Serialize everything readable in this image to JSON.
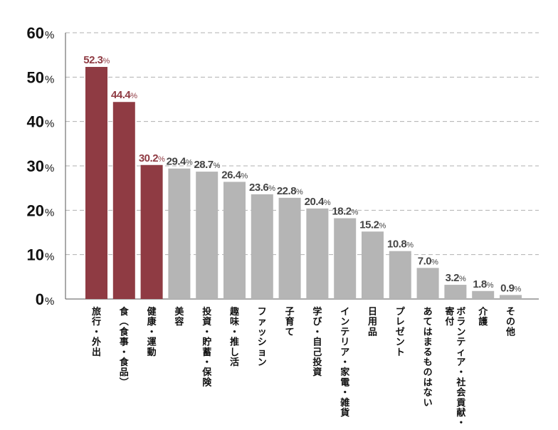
{
  "chart_data": {
    "type": "bar",
    "categories": [
      "旅行・外出",
      "食（食事・食品）",
      "健康・運動",
      "美容",
      "投資・貯蓄・保険",
      "趣味・推し活",
      "ファッション",
      "子育て",
      "学び・自己投資",
      "インテリア・家電・雑貨",
      "日用品",
      "プレゼント",
      "あてはまるものはない",
      "ボランティア・社会貢献・寄付",
      "介護",
      "その他"
    ],
    "values": [
      52.3,
      44.4,
      30.2,
      29.4,
      28.7,
      26.4,
      23.6,
      22.8,
      20.4,
      18.2,
      15.2,
      10.8,
      7.0,
      3.2,
      1.8,
      0.9
    ],
    "value_labels": [
      "52.3",
      "44.4",
      "30.2",
      "29.4",
      "28.7",
      "26.4",
      "23.6",
      "22.8",
      "20.4",
      "18.2",
      "15.2",
      "10.8",
      "7.0",
      "3.2",
      "1.8",
      "0.9"
    ],
    "highlighted_count": 3,
    "ylim": [
      0,
      60
    ],
    "yticks": [
      0,
      10,
      20,
      30,
      40,
      50,
      60
    ],
    "ytick_labels": [
      "0",
      "10",
      "20",
      "30",
      "40",
      "50",
      "60"
    ],
    "unit_suffix": "%",
    "grid": true,
    "colors": {
      "highlight_bar": "#8f3b43",
      "normal_bar": "#b5b5b5",
      "highlight_label": "#8f3b43",
      "normal_label": "#444444",
      "gridline": "#b0b0b0",
      "axis": "#555555"
    }
  }
}
